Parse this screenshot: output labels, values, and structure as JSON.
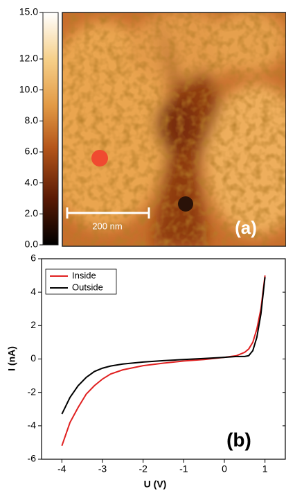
{
  "chart_data": [
    {
      "type": "image",
      "colorbar": {
        "lim": [
          0,
          15
        ],
        "ticks": [
          {
            "value": 0,
            "label": "0.0"
          },
          {
            "value": 2,
            "label": "2.0"
          },
          {
            "value": 4,
            "label": "4.0"
          },
          {
            "value": 6,
            "label": "6.0"
          },
          {
            "value": 8,
            "label": "8.0"
          },
          {
            "value": 10,
            "label": "10.0"
          },
          {
            "value": 12,
            "label": "12.0"
          },
          {
            "value": 15,
            "label": "15.0"
          }
        ]
      },
      "scale_bar_label": "200 nm",
      "panel_label": "(a)"
    },
    {
      "type": "line",
      "panel_label": "(b)",
      "xlabel": "U (V)",
      "ylabel": "I (nA)",
      "xlim": [
        -4.5,
        1.5
      ],
      "ylim": [
        -6,
        6
      ],
      "xticks": [
        -4,
        -3,
        -2,
        -1,
        0,
        1
      ],
      "yticks": [
        -6,
        -4,
        -2,
        0,
        2,
        4,
        6
      ],
      "legend": "upper left",
      "x": [
        -4,
        -3.9,
        -3.8,
        -3.6,
        -3.4,
        -3.2,
        -3,
        -2.8,
        -2.5,
        -2,
        -1.5,
        -1,
        -0.5,
        0,
        0.3,
        0.5,
        0.6,
        0.7,
        0.8,
        0.9,
        0.95,
        1
      ],
      "series": [
        {
          "name": "Inside",
          "color": "#e02020",
          "values": [
            -5.2,
            -4.5,
            -3.8,
            -2.9,
            -2.1,
            -1.6,
            -1.2,
            -0.9,
            -0.65,
            -0.4,
            -0.25,
            -0.12,
            -0.03,
            0.1,
            0.2,
            0.4,
            0.6,
            1.0,
            1.8,
            3.0,
            4.0,
            5.0
          ]
        },
        {
          "name": "Outside",
          "color": "#000000",
          "values": [
            -3.3,
            -2.8,
            -2.3,
            -1.6,
            -1.1,
            -0.75,
            -0.55,
            -0.42,
            -0.3,
            -0.18,
            -0.1,
            -0.03,
            0.03,
            0.1,
            0.15,
            0.15,
            0.2,
            0.5,
            1.3,
            2.7,
            3.8,
            4.9
          ]
        }
      ]
    }
  ]
}
